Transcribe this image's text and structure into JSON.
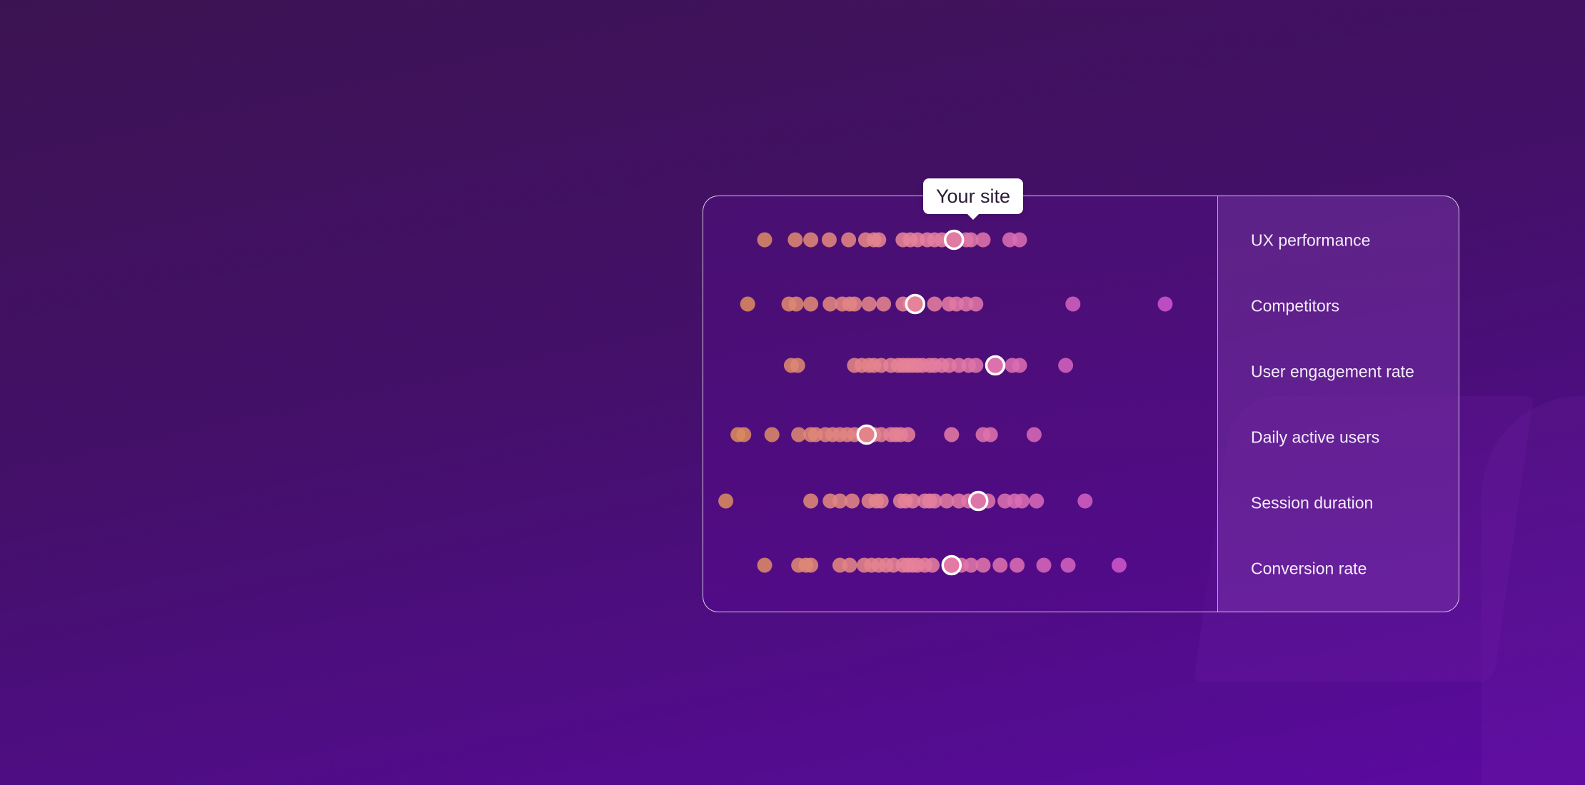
{
  "tooltip": {
    "label": "Your site"
  },
  "colors": {
    "low": "#d98a5e",
    "mid": "#e6829a",
    "high": "#cc55cc",
    "highlight_border": "#ffffff"
  },
  "chart_data": {
    "type": "scatter",
    "title": "",
    "xlabel": "",
    "ylabel": "",
    "xlim": [
      0,
      100
    ],
    "grid": true,
    "gridlines_x": [
      4,
      45,
      86
    ],
    "highlight_series": "Your site",
    "rows": [
      {
        "label": "UX performance",
        "values": [
          10,
          16.3,
          19.5,
          23.3,
          27.3,
          30.8,
          32.5,
          33.5,
          38.5,
          40,
          41.5,
          43.5,
          45,
          46.5,
          48,
          51.5,
          52.5,
          55,
          60.5,
          62.5
        ],
        "highlight": 49
      },
      {
        "label": "Competitors",
        "values": [
          6.5,
          15,
          16.5,
          19.5,
          23.5,
          26,
          27.5,
          28.5,
          31.5,
          34.5,
          38.5,
          40,
          45,
          48,
          49.5,
          51.5,
          53.5,
          73.5,
          92.5
        ],
        "highlight": 41
      },
      {
        "label": "User engagement rate",
        "values": [
          15.5,
          16.8,
          28.5,
          30,
          31.5,
          32.5,
          34,
          36,
          37.5,
          38.5,
          39.5,
          40.5,
          41.5,
          42.5,
          44,
          45,
          46.5,
          48,
          50,
          52,
          53.5,
          61,
          62.5,
          72
        ],
        "highlight": 57.5
      },
      {
        "label": "Daily active users",
        "values": [
          4.5,
          5.7,
          11.5,
          17,
          19.5,
          20.5,
          22.5,
          24,
          25.5,
          27,
          28.5,
          30,
          32.5,
          34,
          36,
          37,
          38,
          39.5,
          48.5,
          55,
          56.5,
          65.5
        ],
        "highlight": 31
      },
      {
        "label": "Session duration",
        "values": [
          2,
          19.5,
          23.5,
          25.5,
          28,
          31.5,
          33,
          34,
          38,
          39,
          40.5,
          43,
          44,
          45,
          47.5,
          50,
          52,
          56,
          59.5,
          61.5,
          63,
          66,
          76
        ],
        "highlight": 54
      },
      {
        "label": "Conversion rate",
        "values": [
          10,
          17,
          18.5,
          19.5,
          25.5,
          27.5,
          30.5,
          32,
          33.5,
          35,
          36.5,
          38.5,
          39.5,
          40.5,
          41.5,
          43,
          44.5,
          50.5,
          52.5,
          55,
          58.5,
          62,
          67.5,
          72.5,
          83
        ],
        "highlight": 48.5
      }
    ]
  }
}
